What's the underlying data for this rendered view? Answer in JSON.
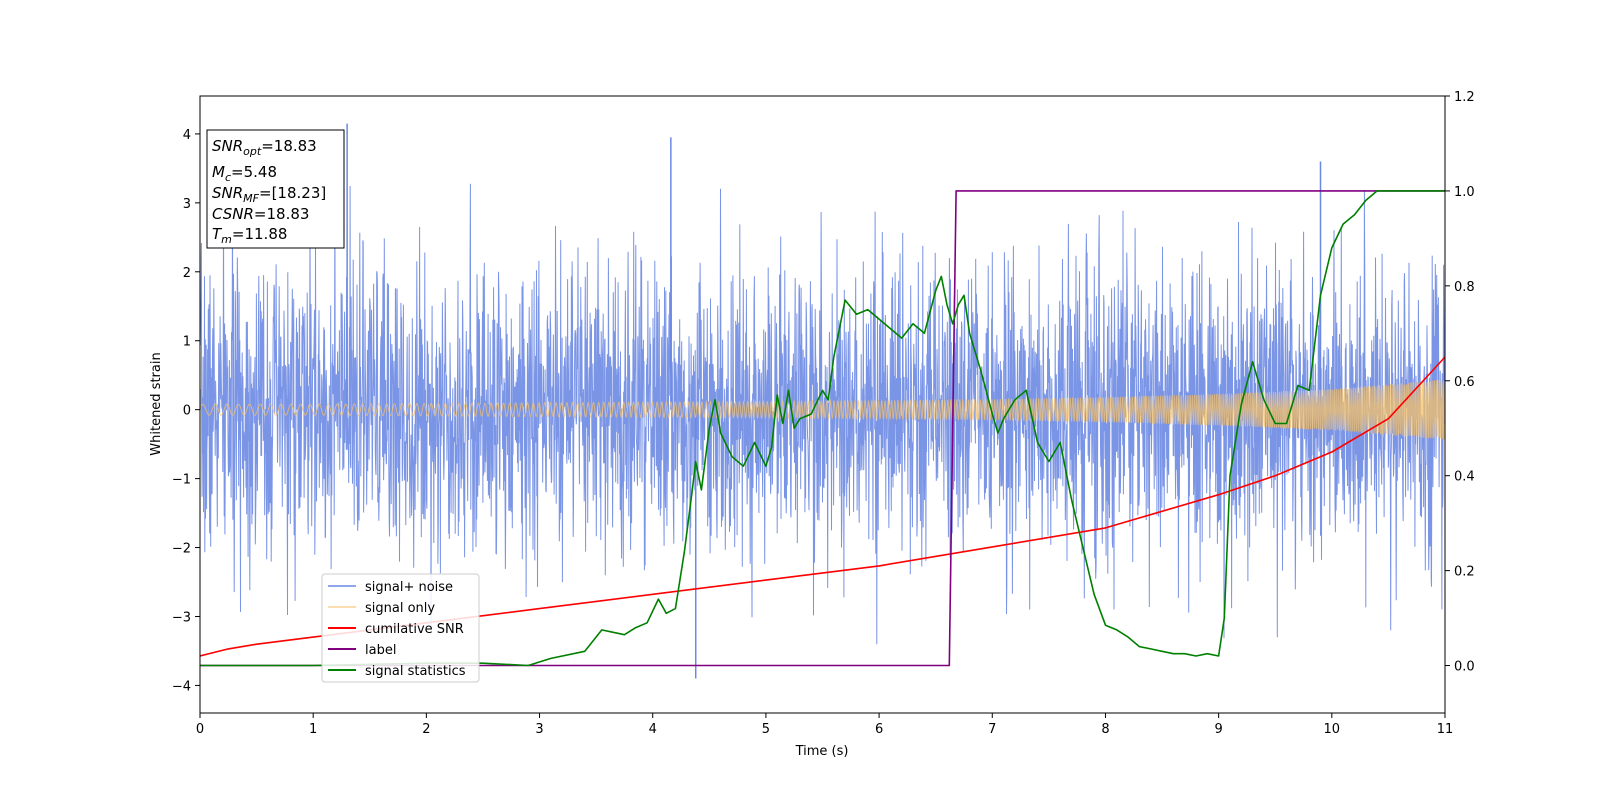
{
  "chart_data": {
    "type": "line",
    "xlabel": "Time (s)",
    "ylabel": "Whitened strain",
    "xlim": [
      0,
      11
    ],
    "ylim_left": [
      -4.4,
      4.55
    ],
    "ylim_right": [
      -0.1,
      1.2
    ],
    "x_ticks": [
      0,
      1,
      2,
      3,
      4,
      5,
      6,
      7,
      8,
      9,
      10,
      11
    ],
    "y_ticks_left": [
      -4,
      -3,
      -2,
      -1,
      0,
      1,
      2,
      3,
      4
    ],
    "y_ticks_right": [
      0.0,
      0.2,
      0.4,
      0.6,
      0.8,
      1.0,
      1.2
    ],
    "legend_position": "lower-left",
    "annotation": {
      "position": "upper-left",
      "lines": [
        {
          "base": "SNR",
          "sub": "opt",
          "value": "=18.83"
        },
        {
          "base": "M",
          "sub": "c",
          "value": "=5.48"
        },
        {
          "base": "SNR",
          "sub": "MF",
          "value": "=[18.23]"
        },
        {
          "base": "CSNR",
          "sub": "",
          "value": "=18.83"
        },
        {
          "base": "T",
          "sub": "m",
          "value": "=11.88"
        }
      ]
    },
    "series": [
      {
        "name": "signal+ noise",
        "axis": "left",
        "color": "#6b88e3",
        "kind": "noise",
        "sample_x": [
          0,
          1.3,
          4.16,
          4.38,
          9.9
        ],
        "sample_y": [
          0.3,
          4.15,
          3.95,
          -3.9,
          3.6
        ]
      },
      {
        "name": "signal only",
        "axis": "left",
        "color": "#f5c169",
        "kind": "chirp",
        "x": [
          0,
          1,
          2,
          3,
          4,
          5,
          6,
          7,
          8,
          9,
          10,
          11
        ],
        "amplitude": [
          0.08,
          0.08,
          0.09,
          0.1,
          0.11,
          0.12,
          0.13,
          0.15,
          0.18,
          0.23,
          0.3,
          0.44
        ]
      },
      {
        "name": "cumilative SNR",
        "axis": "right",
        "color": "#ff0000",
        "x": [
          0,
          0.25,
          0.5,
          1,
          2,
          3,
          4,
          5,
          6,
          7,
          8,
          9,
          9.5,
          10,
          10.5,
          11
        ],
        "y": [
          0.02,
          0.035,
          0.045,
          0.06,
          0.09,
          0.12,
          0.15,
          0.18,
          0.21,
          0.25,
          0.29,
          0.36,
          0.4,
          0.45,
          0.52,
          0.65
        ]
      },
      {
        "name": "label",
        "axis": "right",
        "color": "#800080",
        "x": [
          0,
          6.62,
          6.68,
          11
        ],
        "y": [
          0,
          0,
          1,
          1
        ]
      },
      {
        "name": "signal statistics",
        "axis": "right",
        "color": "#008000",
        "x": [
          0,
          1,
          2,
          2.5,
          2.9,
          3.1,
          3.4,
          3.55,
          3.65,
          3.75,
          3.85,
          3.95,
          4.05,
          4.12,
          4.2,
          4.28,
          4.35,
          4.38,
          4.43,
          4.5,
          4.55,
          4.6,
          4.7,
          4.8,
          4.9,
          5.0,
          5.05,
          5.1,
          5.15,
          5.2,
          5.25,
          5.3,
          5.4,
          5.5,
          5.55,
          5.6,
          5.7,
          5.8,
          5.9,
          6.0,
          6.1,
          6.2,
          6.3,
          6.4,
          6.5,
          6.55,
          6.6,
          6.65,
          6.7,
          6.75,
          6.8,
          6.9,
          7.0,
          7.05,
          7.1,
          7.2,
          7.3,
          7.4,
          7.5,
          7.6,
          7.7,
          7.8,
          7.9,
          8.0,
          8.1,
          8.2,
          8.3,
          8.4,
          8.5,
          8.6,
          8.7,
          8.8,
          8.9,
          9.0,
          9.05,
          9.1,
          9.2,
          9.3,
          9.4,
          9.5,
          9.6,
          9.7,
          9.8,
          9.9,
          10.0,
          10.1,
          10.2,
          10.3,
          10.4,
          10.6,
          10.8,
          11.0
        ],
        "y": [
          0.0,
          0.0,
          0.005,
          0.005,
          0.0,
          0.015,
          0.03,
          0.075,
          0.07,
          0.065,
          0.08,
          0.09,
          0.14,
          0.11,
          0.12,
          0.24,
          0.37,
          0.43,
          0.37,
          0.5,
          0.56,
          0.49,
          0.44,
          0.42,
          0.47,
          0.42,
          0.46,
          0.57,
          0.51,
          0.58,
          0.5,
          0.52,
          0.53,
          0.58,
          0.56,
          0.65,
          0.77,
          0.74,
          0.75,
          0.73,
          0.71,
          0.69,
          0.72,
          0.7,
          0.79,
          0.82,
          0.76,
          0.72,
          0.76,
          0.78,
          0.7,
          0.62,
          0.53,
          0.49,
          0.52,
          0.56,
          0.58,
          0.47,
          0.43,
          0.47,
          0.35,
          0.25,
          0.15,
          0.085,
          0.075,
          0.06,
          0.04,
          0.035,
          0.03,
          0.025,
          0.025,
          0.02,
          0.025,
          0.02,
          0.1,
          0.4,
          0.55,
          0.64,
          0.56,
          0.51,
          0.51,
          0.59,
          0.58,
          0.78,
          0.88,
          0.93,
          0.95,
          0.98,
          1.0,
          1.0,
          1.0,
          1.0
        ]
      }
    ]
  }
}
